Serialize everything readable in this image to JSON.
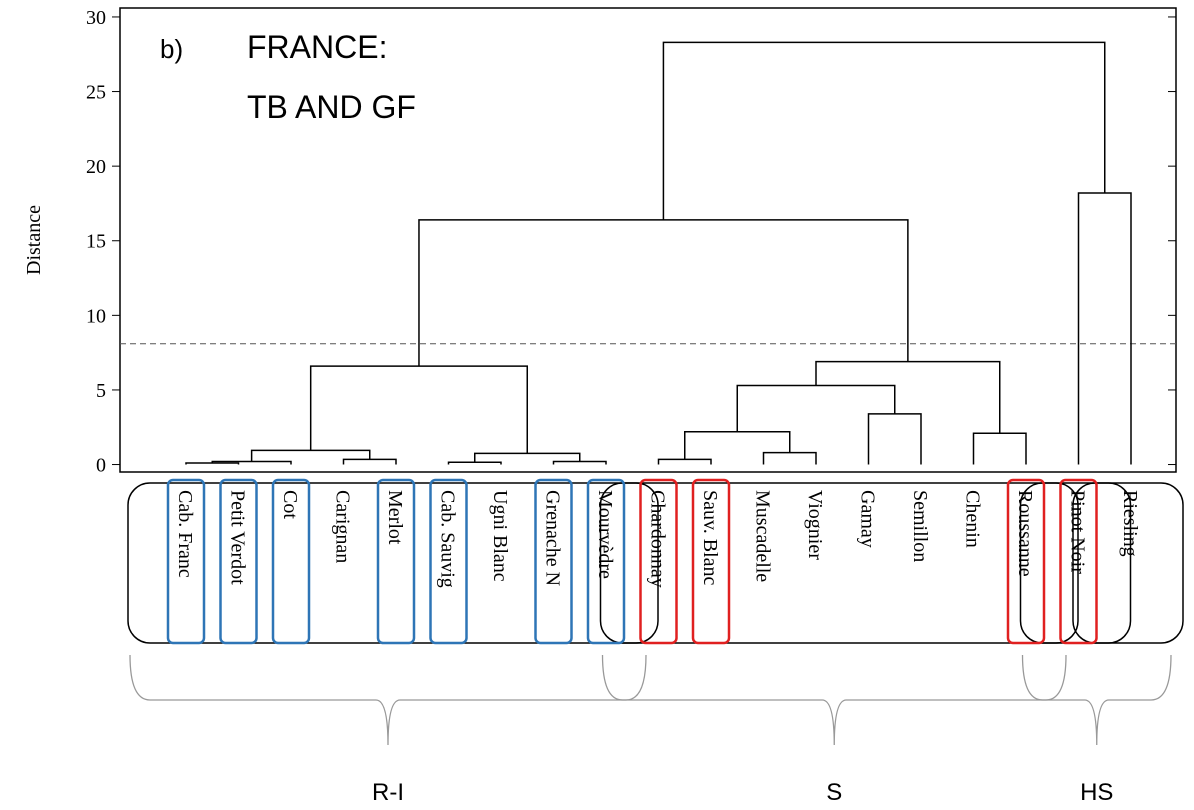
{
  "chart_data": {
    "type": "dendrogram",
    "y_label": "Distance",
    "annotations": [
      "b)",
      "FRANCE:",
      "TB AND GF"
    ],
    "ylim": [
      -0.5,
      30.6
    ],
    "yticks": [
      0,
      5,
      10,
      15,
      20,
      25,
      30
    ],
    "cut_height": 8.1,
    "leaves": [
      "Cab. Franc",
      "Petit Verdot",
      "Cot",
      "Carignan",
      "Merlot",
      "Cab. Sauvig",
      "Ugni Blanc",
      "Grenache N",
      "Mourvèdre",
      "Chardonnay",
      "Sauv. Blanc",
      "Muscadelle",
      "Viognier",
      "Gamay",
      "Semillon",
      "Chenin",
      "Roussanne",
      "Pinot Noir",
      "Riesling"
    ],
    "highlight": [
      "#2e75b6",
      "#2e75b6",
      "#2e75b6",
      null,
      "#2e75b6",
      "#2e75b6",
      null,
      "#2e75b6",
      "#2e75b6",
      "#e02020",
      "#e02020",
      null,
      null,
      null,
      null,
      null,
      "#e02020",
      "#e02020",
      null
    ],
    "merges": [
      {
        "children": [
          0,
          1
        ],
        "height": 0.1
      },
      {
        "children": [
          19,
          2
        ],
        "height": 0.2
      },
      {
        "children": [
          3,
          4
        ],
        "height": 0.35
      },
      {
        "children": [
          20,
          21
        ],
        "height": 0.95
      },
      {
        "children": [
          5,
          6
        ],
        "height": 0.15
      },
      {
        "children": [
          7,
          8
        ],
        "height": 0.2
      },
      {
        "children": [
          23,
          24
        ],
        "height": 0.75
      },
      {
        "children": [
          22,
          25
        ],
        "height": 6.6
      },
      {
        "children": [
          9,
          10
        ],
        "height": 0.35
      },
      {
        "children": [
          11,
          12
        ],
        "height": 0.8
      },
      {
        "children": [
          27,
          28
        ],
        "height": 2.2
      },
      {
        "children": [
          13,
          14
        ],
        "height": 3.4
      },
      {
        "children": [
          29,
          30
        ],
        "height": 5.3
      },
      {
        "children": [
          15,
          16
        ],
        "height": 2.1
      },
      {
        "children": [
          31,
          32
        ],
        "height": 6.9
      },
      {
        "children": [
          26,
          33
        ],
        "height": 16.4
      },
      {
        "children": [
          17,
          18
        ],
        "height": 18.2
      },
      {
        "children": [
          34,
          35
        ],
        "height": 28.3
      }
    ],
    "boxes": [
      [
        0,
        8
      ],
      [
        9,
        16
      ],
      [
        17,
        17
      ],
      [
        18,
        18
      ]
    ],
    "groups": [
      {
        "label": "R-I",
        "leaves": [
          0,
          8
        ]
      },
      {
        "label": "S",
        "leaves": [
          9,
          16
        ]
      },
      {
        "label": "HS",
        "leaves": [
          17,
          18
        ]
      }
    ]
  }
}
